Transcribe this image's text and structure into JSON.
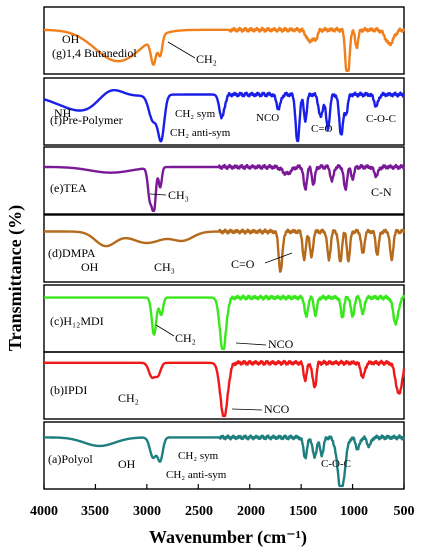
{
  "chart_data": {
    "type": "line",
    "y_axis_label": "Transmittance (%)",
    "x_axis_label": "Wavenumber (cm⁻¹)",
    "x_ticks": [
      "4000",
      "3500",
      "3000",
      "2500",
      "2000",
      "1500",
      "1000",
      "500"
    ],
    "xlim": [
      4000,
      500
    ],
    "panels": [
      {
        "label": "(g)1,4 Butanediol",
        "color": "#f0801e",
        "baseline": 0.33,
        "noise_from": 2200,
        "peaks": [
          {
            "x": 3280,
            "depth": 0.55,
            "width": 220
          },
          {
            "x": 2935,
            "depth": 0.45,
            "width": 25
          },
          {
            "x": 2870,
            "depth": 0.35,
            "width": 20
          },
          {
            "x": 1420,
            "depth": 0.2,
            "width": 30
          },
          {
            "x": 1360,
            "depth": 0.15,
            "width": 20
          },
          {
            "x": 1050,
            "depth": 0.95,
            "width": 18
          },
          {
            "x": 960,
            "depth": 0.3,
            "width": 15
          },
          {
            "x": 640,
            "depth": 0.25,
            "width": 40
          }
        ],
        "annotations": [
          "OH",
          "CH₂"
        ]
      },
      {
        "label": "(f)Pre-Polymer",
        "color": "#1a1fe8",
        "baseline": 0.22,
        "noise_from": 2300,
        "peaks": [
          {
            "x": 3600,
            "depth": 0.3,
            "width": 250
          },
          {
            "x": 3360,
            "depth": -0.25,
            "width": 120
          },
          {
            "x": 2940,
            "depth": 0.45,
            "width": 40
          },
          {
            "x": 2860,
            "depth": 0.75,
            "width": 30
          },
          {
            "x": 2270,
            "depth": 0.4,
            "width": 25
          },
          {
            "x": 1720,
            "depth": 0.25,
            "width": 20
          },
          {
            "x": 1535,
            "depth": 0.85,
            "width": 18
          },
          {
            "x": 1460,
            "depth": 0.45,
            "width": 15
          },
          {
            "x": 1310,
            "depth": 0.4,
            "width": 20
          },
          {
            "x": 1240,
            "depth": 0.6,
            "width": 18
          },
          {
            "x": 1110,
            "depth": 0.7,
            "width": 20
          },
          {
            "x": 1060,
            "depth": 0.3,
            "width": 15
          },
          {
            "x": 770,
            "depth": 0.2,
            "width": 20
          }
        ],
        "annotations": [
          "NH",
          "CH₂ sym",
          "CH₂ anti-sym",
          "NCO",
          "C=O",
          "C-O-C"
        ]
      },
      {
        "label": "(e)TEA",
        "color": "#7a1a96",
        "baseline": 0.28,
        "noise_from": 2300,
        "peaks": [
          {
            "x": 3350,
            "depth": 0.1,
            "width": 200
          },
          {
            "x": 2970,
            "depth": 0.55,
            "width": 20
          },
          {
            "x": 2930,
            "depth": 0.7,
            "width": 18
          },
          {
            "x": 2870,
            "depth": 0.35,
            "width": 15
          },
          {
            "x": 1640,
            "depth": 0.12,
            "width": 40
          },
          {
            "x": 1460,
            "depth": 0.4,
            "width": 15
          },
          {
            "x": 1380,
            "depth": 0.3,
            "width": 15
          },
          {
            "x": 1200,
            "depth": 0.25,
            "width": 15
          },
          {
            "x": 1070,
            "depth": 0.4,
            "width": 15
          },
          {
            "x": 1000,
            "depth": 0.2,
            "width": 15
          },
          {
            "x": 770,
            "depth": 0.15,
            "width": 20
          }
        ],
        "annotations": [
          "CH₃",
          "C-N"
        ]
      },
      {
        "label": "(d)DMPA",
        "color": "#b56a1c",
        "baseline": 0.22,
        "noise_from": 2300,
        "peaks": [
          {
            "x": 3400,
            "depth": 0.25,
            "width": 100
          },
          {
            "x": 3000,
            "depth": 0.2,
            "width": 150
          },
          {
            "x": 2650,
            "depth": 0.15,
            "width": 100
          },
          {
            "x": 1700,
            "depth": 0.7,
            "width": 18
          },
          {
            "x": 1470,
            "depth": 0.5,
            "width": 15
          },
          {
            "x": 1400,
            "depth": 0.45,
            "width": 15
          },
          {
            "x": 1230,
            "depth": 0.5,
            "width": 15
          },
          {
            "x": 1120,
            "depth": 0.55,
            "width": 15
          },
          {
            "x": 1040,
            "depth": 0.5,
            "width": 15
          },
          {
            "x": 900,
            "depth": 0.4,
            "width": 15
          },
          {
            "x": 760,
            "depth": 0.4,
            "width": 15
          },
          {
            "x": 620,
            "depth": 0.5,
            "width": 15
          }
        ],
        "annotations": [
          "OH",
          "CH₃",
          "C=O"
        ]
      },
      {
        "label": "(c)H₁₂MDI",
        "color": "#38e81a",
        "baseline": 0.15,
        "noise_from": 2300,
        "peaks": [
          {
            "x": 2930,
            "depth": 0.65,
            "width": 22
          },
          {
            "x": 2860,
            "depth": 0.3,
            "width": 18
          },
          {
            "x": 2260,
            "depth": 0.95,
            "width": 30
          },
          {
            "x": 1450,
            "depth": 0.35,
            "width": 15
          },
          {
            "x": 1360,
            "depth": 0.3,
            "width": 15
          },
          {
            "x": 1100,
            "depth": 0.35,
            "width": 15
          },
          {
            "x": 1000,
            "depth": 0.35,
            "width": 15
          },
          {
            "x": 900,
            "depth": 0.3,
            "width": 15
          },
          {
            "x": 580,
            "depth": 0.45,
            "width": 25
          }
        ],
        "annotations": [
          "CH₂",
          "NCO"
        ]
      },
      {
        "label": "(b)IPDI",
        "color": "#ee1a1a",
        "baseline": 0.12,
        "noise_from": 2300,
        "peaks": [
          {
            "x": 2950,
            "depth": 0.25,
            "width": 30
          },
          {
            "x": 2890,
            "depth": 0.2,
            "width": 25
          },
          {
            "x": 2250,
            "depth": 0.98,
            "width": 35
          },
          {
            "x": 1460,
            "depth": 0.3,
            "width": 15
          },
          {
            "x": 1380,
            "depth": 0.3,
            "width": 15
          },
          {
            "x": 1360,
            "depth": 0.25,
            "width": 12
          },
          {
            "x": 900,
            "depth": 0.25,
            "width": 20
          },
          {
            "x": 550,
            "depth": 0.55,
            "width": 30
          }
        ],
        "annotations": [
          "CH₂",
          "NCO"
        ]
      },
      {
        "label": "(a)Polyol",
        "color": "#1f7f7f",
        "baseline": 0.2,
        "noise_from": 2300,
        "peaks": [
          {
            "x": 3460,
            "depth": 0.15,
            "width": 150
          },
          {
            "x": 2940,
            "depth": 0.35,
            "width": 30
          },
          {
            "x": 2870,
            "depth": 0.4,
            "width": 25
          },
          {
            "x": 1460,
            "depth": 0.35,
            "width": 18
          },
          {
            "x": 1370,
            "depth": 0.35,
            "width": 18
          },
          {
            "x": 1300,
            "depth": 0.3,
            "width": 18
          },
          {
            "x": 1110,
            "depth": 0.95,
            "width": 35
          },
          {
            "x": 950,
            "depth": 0.2,
            "width": 20
          },
          {
            "x": 840,
            "depth": 0.15,
            "width": 20
          }
        ],
        "annotations": [
          "OH",
          "CH₂ sym",
          "CH₂ anti-sym",
          "C-O-C"
        ]
      }
    ]
  }
}
